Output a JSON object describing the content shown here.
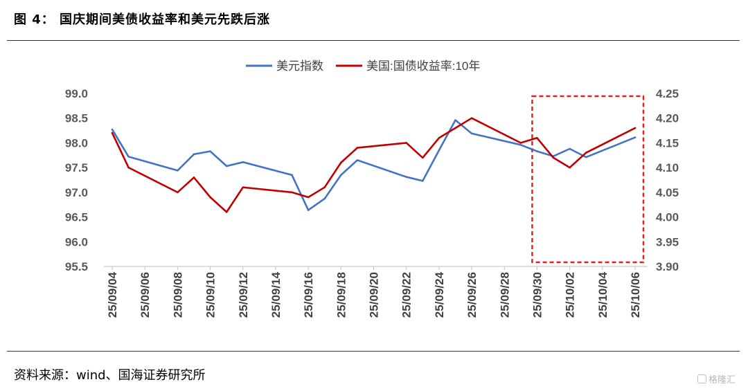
{
  "figure": {
    "title": "图 4：    国庆期间美债收益率和美元先跌后涨",
    "source": "资料来源：wind、国海证券研究所",
    "watermark": "格隆汇"
  },
  "chart_data": {
    "type": "line",
    "legend_position": "top-center",
    "grid": false,
    "x": [
      "25/09/04",
      "25/09/05",
      "25/09/08",
      "25/09/09",
      "25/09/10",
      "25/09/11",
      "25/09/12",
      "25/09/15",
      "25/09/16",
      "25/09/17",
      "25/09/18",
      "25/09/19",
      "25/09/22",
      "25/09/23",
      "25/09/24",
      "25/09/25",
      "25/09/26",
      "25/09/29",
      "25/09/30",
      "25/10/01",
      "25/10/02",
      "25/10/03",
      "25/10/06"
    ],
    "x_tick_labels": [
      "25/09/04",
      "25/09/06",
      "25/09/08",
      "25/09/10",
      "25/09/12",
      "25/09/14",
      "25/09/16",
      "25/09/18",
      "25/09/20",
      "25/09/22",
      "25/09/24",
      "25/09/26",
      "25/09/28",
      "25/09/30",
      "25/10/02",
      "25/10/04",
      "25/10/06"
    ],
    "y_left": {
      "min": 95.5,
      "max": 99.0,
      "ticks": [
        "99.0",
        "98.5",
        "98.0",
        "97.5",
        "97.0",
        "96.5",
        "96.0",
        "95.5"
      ]
    },
    "y_right": {
      "min": 3.9,
      "max": 4.25,
      "ticks": [
        "4.25",
        "4.20",
        "4.15",
        "4.10",
        "4.05",
        "4.00",
        "3.95",
        "3.90"
      ]
    },
    "series": [
      {
        "name": "美元指数",
        "axis": "left",
        "color": "#4472C4",
        "points": [
          [
            "25/09/04",
            98.27
          ],
          [
            "25/09/05",
            97.72
          ],
          [
            "25/09/08",
            97.44
          ],
          [
            "25/09/09",
            97.77
          ],
          [
            "25/09/10",
            97.83
          ],
          [
            "25/09/11",
            97.53
          ],
          [
            "25/09/12",
            97.61
          ],
          [
            "25/09/15",
            97.35
          ],
          [
            "25/09/16",
            96.64
          ],
          [
            "25/09/17",
            96.87
          ],
          [
            "25/09/18",
            97.35
          ],
          [
            "25/09/19",
            97.65
          ],
          [
            "25/09/22",
            97.31
          ],
          [
            "25/09/23",
            97.23
          ],
          [
            "25/09/24",
            97.85
          ],
          [
            "25/09/25",
            98.46
          ],
          [
            "25/09/26",
            98.19
          ],
          [
            "25/09/29",
            97.96
          ],
          [
            "25/09/30",
            97.83
          ],
          [
            "25/10/01",
            97.73
          ],
          [
            "25/10/02",
            97.88
          ],
          [
            "25/10/03",
            97.71
          ],
          [
            "25/10/06",
            98.11
          ]
        ]
      },
      {
        "name": "美国:国债收益率:10年",
        "axis": "right",
        "color": "#C00000",
        "points": [
          [
            "25/09/04",
            4.17
          ],
          [
            "25/09/05",
            4.1
          ],
          [
            "25/09/08",
            4.05
          ],
          [
            "25/09/09",
            4.08
          ],
          [
            "25/09/10",
            4.04
          ],
          [
            "25/09/11",
            4.01
          ],
          [
            "25/09/12",
            4.06
          ],
          [
            "25/09/15",
            4.05
          ],
          [
            "25/09/16",
            4.04
          ],
          [
            "25/09/17",
            4.06
          ],
          [
            "25/09/18",
            4.11
          ],
          [
            "25/09/19",
            4.14
          ],
          [
            "25/09/22",
            4.15
          ],
          [
            "25/09/23",
            4.12
          ],
          [
            "25/09/24",
            4.16
          ],
          [
            "25/09/25",
            4.18
          ],
          [
            "25/09/26",
            4.2
          ],
          [
            "25/09/29",
            4.15
          ],
          [
            "25/09/30",
            4.16
          ],
          [
            "25/10/01",
            4.12
          ],
          [
            "25/10/02",
            4.1
          ],
          [
            "25/10/03",
            4.13
          ],
          [
            "25/10/06",
            4.18
          ]
        ]
      }
    ],
    "highlight": {
      "from": "25/09/30",
      "to": "25/10/06",
      "color": "#E02020",
      "style": "dashed"
    }
  }
}
